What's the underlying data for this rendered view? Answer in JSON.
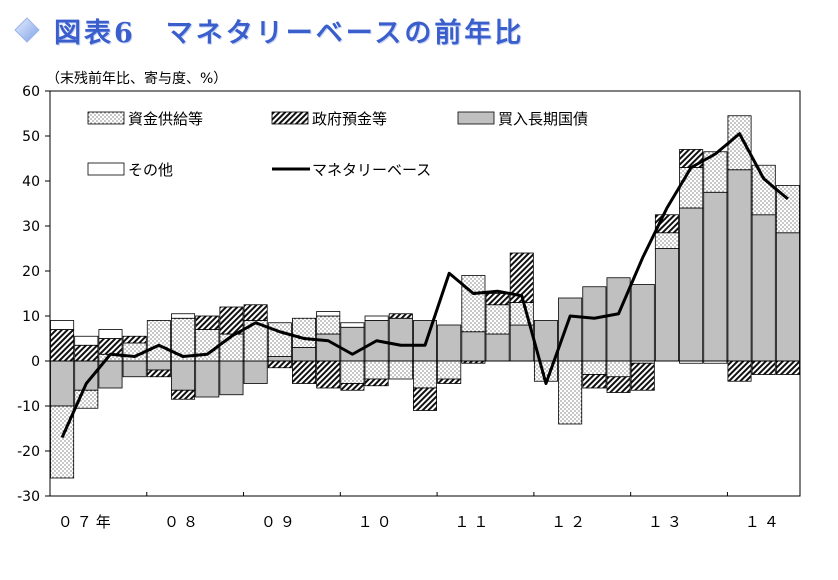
{
  "title": "図表6　マネタリーベースの前年比",
  "chart_data": {
    "type": "bar",
    "ylabel": "（末残前年比、寄与度、%）",
    "ylim": [
      -30,
      60
    ],
    "yticks": [
      -30,
      -20,
      -10,
      0,
      10,
      20,
      30,
      40,
      50,
      60
    ],
    "year_labels": [
      {
        "label": "０７年",
        "quarter": 1.5
      },
      {
        "label": "０８",
        "quarter": 5.5
      },
      {
        "label": "０９",
        "quarter": 9.5
      },
      {
        "label": "１０",
        "quarter": 13.5
      },
      {
        "label": "１１",
        "quarter": 17.5
      },
      {
        "label": "１２",
        "quarter": 21.5
      },
      {
        "label": "１３",
        "quarter": 25.5
      },
      {
        "label": "１４",
        "quarter": 29.5
      }
    ],
    "legend": {
      "shikin": "資金供給等",
      "seifu": "政府預金等",
      "kokusai": "買入長期国債",
      "other": "その他",
      "line": "マネタリーベース"
    },
    "series": [
      {
        "key": "kokusai",
        "values": [
          -10,
          -6.5,
          -6,
          -3.5,
          -2,
          -6.5,
          -8,
          -7.5,
          -5,
          1,
          3,
          6,
          7.5,
          9,
          9.5,
          9,
          8,
          6.5,
          6,
          8,
          9,
          14,
          16.5,
          18.5,
          17,
          25,
          34,
          37.5,
          42.5,
          32.5,
          28.5
        ]
      },
      {
        "key": "shikin",
        "values": [
          -16,
          -4,
          1.5,
          4,
          9,
          9.5,
          7,
          6,
          9,
          7.5,
          6.5,
          4,
          -5,
          -4,
          -4,
          -6,
          -4,
          12.5,
          6.5,
          5,
          -4.5,
          -14,
          -3,
          -3.5,
          -0.5,
          3.5,
          9,
          9,
          12,
          11,
          10.5
        ]
      },
      {
        "key": "seifu",
        "values": [
          7,
          3.5,
          3.5,
          1.5,
          -1.5,
          -2,
          3,
          6,
          3.5,
          -1.5,
          -5,
          -6,
          -1.5,
          -1.5,
          1,
          -5,
          -1,
          -0.5,
          2.5,
          11,
          0,
          0,
          -3,
          -3.5,
          -6,
          4,
          4,
          0,
          -4.5,
          -3,
          -3
        ]
      },
      {
        "key": "other",
        "values": [
          2,
          2,
          2,
          0,
          0,
          1,
          0,
          0,
          0,
          0,
          0,
          1,
          1,
          1,
          0,
          0,
          0,
          0,
          0,
          0,
          0,
          0,
          0,
          0,
          0,
          0,
          -0.5,
          -0.5,
          0,
          0,
          0
        ]
      },
      {
        "key": "line",
        "values": [
          -17,
          -5,
          1.5,
          1,
          3.5,
          1,
          1.5,
          5.5,
          8.5,
          6.5,
          5,
          4.5,
          1.5,
          4.5,
          3.5,
          3.5,
          19.5,
          15,
          15.5,
          14.5,
          -5,
          10,
          9.5,
          10.5,
          23,
          34,
          43,
          46,
          50.5,
          40.5,
          36
        ]
      }
    ]
  }
}
